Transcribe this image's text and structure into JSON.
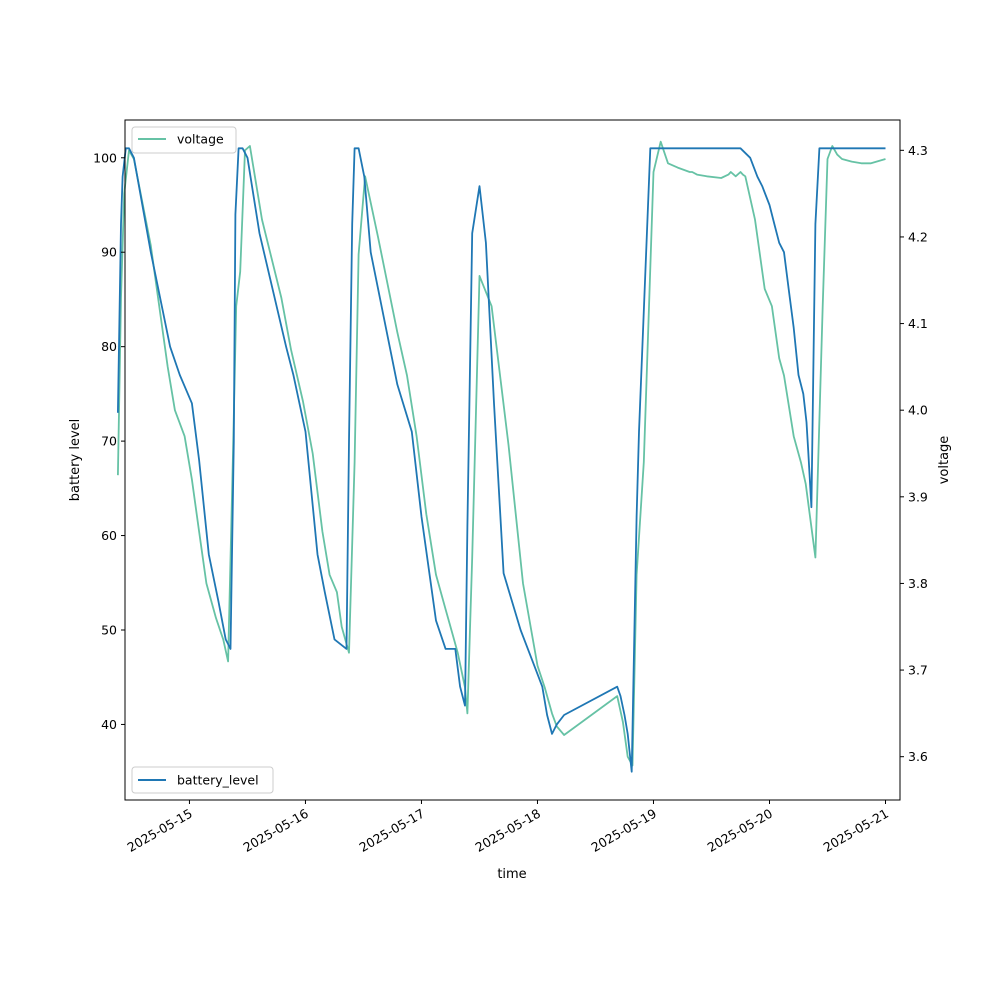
{
  "chart_data": {
    "type": "line",
    "title": "",
    "xlabel": "time",
    "ylabel": "battery level",
    "y2label": "voltage",
    "xlim": [
      "2025-05-14T10:40",
      "2025-05-21T03:00"
    ],
    "ylim": [
      32,
      104
    ],
    "y2lim": [
      3.55,
      4.335
    ],
    "x_ticks": [
      "2025-05-15",
      "2025-05-16",
      "2025-05-17",
      "2025-05-18",
      "2025-05-19",
      "2025-05-20",
      "2025-05-21"
    ],
    "y_ticks": [
      40,
      50,
      60,
      70,
      80,
      90,
      100
    ],
    "y2_ticks": [
      "3.6",
      "3.7",
      "3.8",
      "3.9",
      "4.0",
      "4.1",
      "4.2",
      "4.3"
    ],
    "grid": false,
    "series": [
      {
        "name": "battery_level",
        "axis": "left",
        "color": "#1f77b4",
        "legend": "lower-left",
        "x": [
          "2025-05-14T09:12",
          "2025-05-14T09:50",
          "2025-05-14T10:10",
          "2025-05-14T10:50",
          "2025-05-14T11:30",
          "2025-05-14T12:30",
          "2025-05-14T16:00",
          "2025-05-14T20:00",
          "2025-05-14T22:00",
          "2025-05-15T00:30",
          "2025-05-15T02:00",
          "2025-05-15T04:00",
          "2025-05-15T06:00",
          "2025-05-15T07:30",
          "2025-05-15T08:30",
          "2025-05-15T09:10",
          "2025-05-15T09:30",
          "2025-05-15T10:10",
          "2025-05-15T11:00",
          "2025-05-15T12:00",
          "2025-05-15T14:30",
          "2025-05-15T20:00",
          "2025-05-15T21:30",
          "2025-05-16T00:00",
          "2025-05-16T02:30",
          "2025-05-16T04:00",
          "2025-05-16T06:00",
          "2025-05-16T08:30",
          "2025-05-16T09:00",
          "2025-05-16T09:40",
          "2025-05-16T10:10",
          "2025-05-16T11:00",
          "2025-05-16T12:10",
          "2025-05-16T13:30",
          "2025-05-16T19:00",
          "2025-05-16T22:00",
          "2025-05-17T00:00",
          "2025-05-17T03:00",
          "2025-05-17T05:00",
          "2025-05-17T07:00",
          "2025-05-17T08:00",
          "2025-05-17T09:00",
          "2025-05-17T09:30",
          "2025-05-17T10:30",
          "2025-05-17T12:00",
          "2025-05-17T13:20",
          "2025-05-17T15:00",
          "2025-05-17T17:00",
          "2025-05-17T20:30",
          "2025-05-17T23:30",
          "2025-05-18T01:00",
          "2025-05-18T02:00",
          "2025-05-18T03:00",
          "2025-05-18T04:00",
          "2025-05-18T05:30",
          "2025-05-18T16:30",
          "2025-05-18T17:10",
          "2025-05-18T18:00",
          "2025-05-18T18:40",
          "2025-05-18T19:30",
          "2025-05-18T20:30",
          "2025-05-18T21:00",
          "2025-05-18T23:20",
          "2025-05-19T03:00",
          "2025-05-19T16:00",
          "2025-05-19T18:00",
          "2025-05-19T20:00",
          "2025-05-19T21:30",
          "2025-05-19T22:30",
          "2025-05-20T00:00",
          "2025-05-20T01:00",
          "2025-05-20T02:00",
          "2025-05-20T03:00",
          "2025-05-20T04:00",
          "2025-05-20T05:00",
          "2025-05-20T06:00",
          "2025-05-20T07:00",
          "2025-05-20T07:40",
          "2025-05-20T08:00",
          "2025-05-20T08:40",
          "2025-05-20T09:30",
          "2025-05-20T10:20",
          "2025-05-20T11:00",
          "2025-05-21T00:00"
        ],
        "y": [
          73,
          93,
          98,
          101,
          101,
          100,
          90,
          80,
          77,
          74,
          68,
          58,
          53,
          49,
          48,
          70,
          94,
          101,
          101,
          100,
          92,
          80,
          77,
          71,
          58,
          54,
          49,
          48,
          70,
          93,
          101,
          101,
          98,
          90,
          76,
          71,
          62,
          51,
          48,
          48,
          44,
          42,
          61,
          92,
          97,
          91,
          74,
          56,
          50,
          46,
          44,
          41,
          39,
          40,
          41,
          44,
          43,
          41,
          39,
          35,
          62,
          71,
          101,
          101,
          101,
          101,
          100,
          98,
          97,
          95,
          93,
          91,
          90,
          86,
          82,
          77,
          75,
          72,
          69,
          63,
          93,
          101,
          101,
          101
        ]
      },
      {
        "name": "voltage",
        "axis": "right",
        "color": "#66c2a5",
        "legend": "upper-left",
        "x": [
          "2025-05-14T09:12",
          "2025-05-14T09:50",
          "2025-05-14T10:30",
          "2025-05-14T11:30",
          "2025-05-14T12:30",
          "2025-05-14T16:00",
          "2025-05-14T19:30",
          "2025-05-14T21:00",
          "2025-05-14T23:00",
          "2025-05-15T00:30",
          "2025-05-15T02:00",
          "2025-05-15T03:30",
          "2025-05-15T05:30",
          "2025-05-15T07:00",
          "2025-05-15T08:00",
          "2025-05-15T09:00",
          "2025-05-15T09:40",
          "2025-05-15T10:30",
          "2025-05-15T11:30",
          "2025-05-15T12:30",
          "2025-05-15T15:00",
          "2025-05-15T19:00",
          "2025-05-15T21:00",
          "2025-05-15T23:30",
          "2025-05-16T01:30",
          "2025-05-16T03:30",
          "2025-05-16T05:00",
          "2025-05-16T06:30",
          "2025-05-16T07:30",
          "2025-05-16T09:00",
          "2025-05-16T10:10",
          "2025-05-16T11:00",
          "2025-05-16T12:20",
          "2025-05-16T15:00",
          "2025-05-16T19:00",
          "2025-05-16T21:00",
          "2025-05-16T23:00",
          "2025-05-17T01:00",
          "2025-05-17T03:00",
          "2025-05-17T05:00",
          "2025-05-17T06:30",
          "2025-05-17T07:30",
          "2025-05-17T09:00",
          "2025-05-17T09:30",
          "2025-05-17T10:30",
          "2025-05-17T12:00",
          "2025-05-17T14:30",
          "2025-05-17T18:00",
          "2025-05-17T21:00",
          "2025-05-18T00:00",
          "2025-05-18T01:30",
          "2025-05-18T03:00",
          "2025-05-18T04:00",
          "2025-05-18T05:30",
          "2025-05-18T16:30",
          "2025-05-18T17:40",
          "2025-05-18T18:40",
          "2025-05-18T19:40",
          "2025-05-18T20:30",
          "2025-05-18T22:00",
          "2025-05-19T00:00",
          "2025-05-19T01:30",
          "2025-05-19T03:00",
          "2025-05-19T05:00",
          "2025-05-19T07:30",
          "2025-05-19T08:00",
          "2025-05-19T09:00",
          "2025-05-19T11:00",
          "2025-05-19T14:00",
          "2025-05-19T15:30",
          "2025-05-19T16:00",
          "2025-05-19T17:00",
          "2025-05-19T18:00",
          "2025-05-19T18:30",
          "2025-05-19T19:00",
          "2025-05-19T21:00",
          "2025-05-19T23:00",
          "2025-05-20T00:30",
          "2025-05-20T02:00",
          "2025-05-20T03:00",
          "2025-05-20T05:00",
          "2025-05-20T06:30",
          "2025-05-20T07:30",
          "2025-05-20T09:30",
          "2025-05-20T11:00",
          "2025-05-20T12:00",
          "2025-05-20T13:00",
          "2025-05-20T14:00",
          "2025-05-20T15:00",
          "2025-05-20T17:00",
          "2025-05-20T19:00",
          "2025-05-20T21:00",
          "2025-05-21T00:00"
        ],
        "y": [
          3.925,
          4.13,
          4.25,
          4.3,
          4.29,
          4.19,
          4.05,
          4.0,
          3.97,
          3.92,
          3.86,
          3.8,
          3.76,
          3.735,
          3.71,
          3.95,
          4.12,
          4.16,
          4.3,
          4.305,
          4.22,
          4.13,
          4.07,
          4.01,
          3.95,
          3.86,
          3.81,
          3.79,
          3.75,
          3.72,
          3.94,
          4.18,
          4.27,
          4.2,
          4.09,
          4.04,
          3.97,
          3.88,
          3.81,
          3.77,
          3.74,
          3.72,
          3.68,
          3.65,
          3.83,
          4.155,
          4.12,
          3.96,
          3.8,
          3.705,
          3.68,
          3.65,
          3.635,
          3.625,
          3.67,
          3.64,
          3.6,
          3.59,
          3.81,
          3.94,
          4.275,
          4.31,
          4.285,
          4.28,
          4.275,
          4.275,
          4.272,
          4.27,
          4.268,
          4.272,
          4.275,
          4.27,
          4.275,
          4.272,
          4.27,
          4.22,
          4.14,
          4.12,
          4.06,
          4.04,
          3.97,
          3.94,
          3.915,
          3.83,
          4.12,
          4.29,
          4.305,
          4.295,
          4.29,
          4.287,
          4.285,
          4.285,
          4.29
        ]
      }
    ]
  }
}
